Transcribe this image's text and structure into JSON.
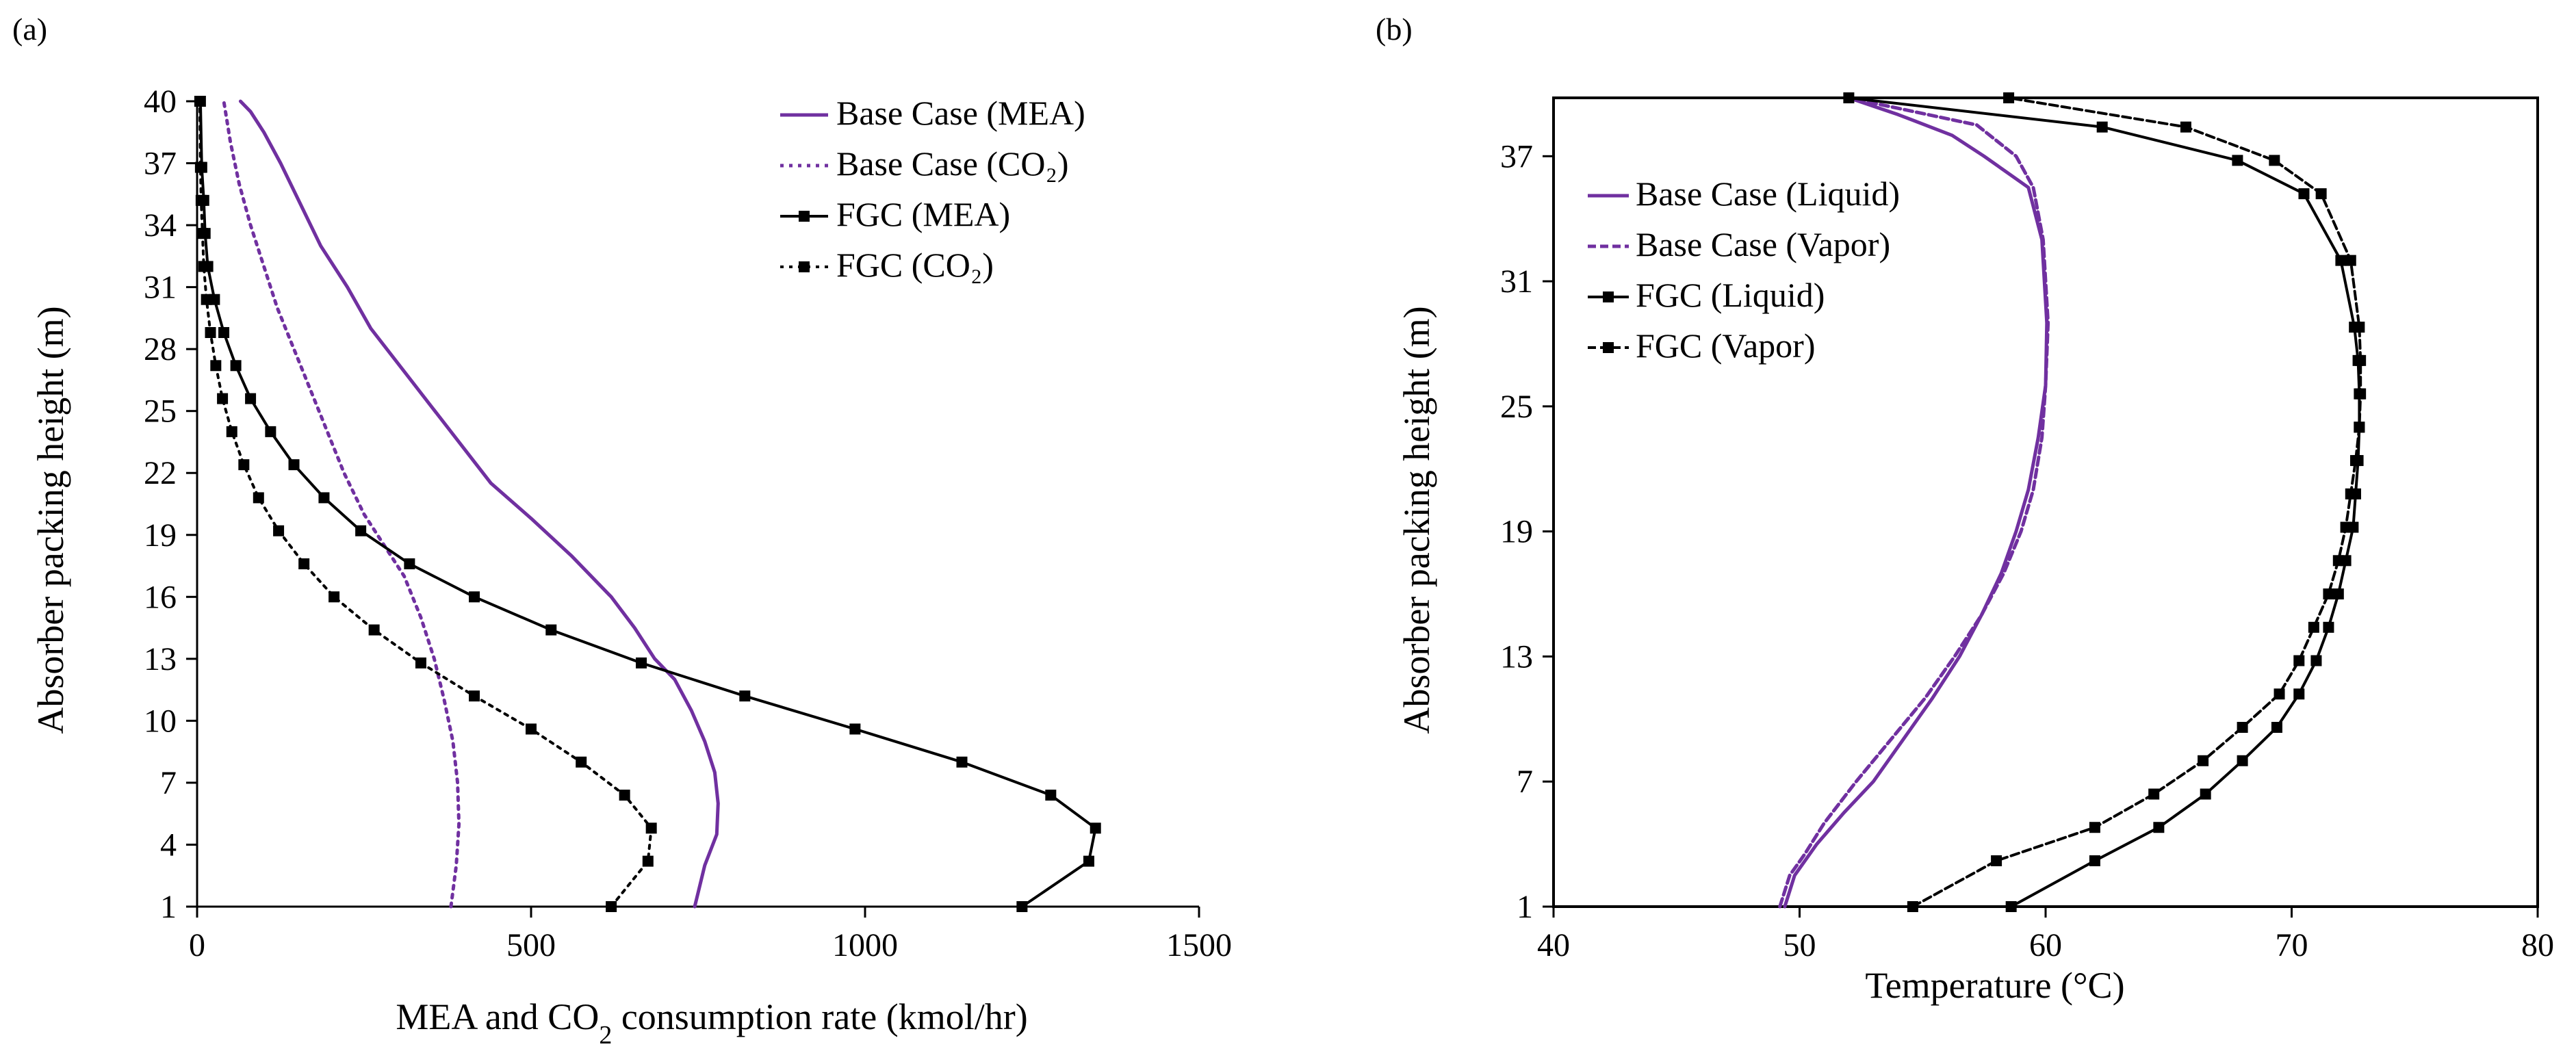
{
  "colors": {
    "purple": "#7030A0",
    "black": "#000000"
  },
  "chart_data": [
    {
      "id": "a",
      "panel_label": "(a)",
      "type": "line",
      "title": "",
      "xlabel_main": "MEA and CO",
      "xlabel_sub": "2",
      "xlabel_tail": " consumption rate (kmol/hr)",
      "ylabel": "Absorber packing height (m)",
      "xlim": [
        0,
        1500
      ],
      "ylim": [
        1,
        40
      ],
      "xticks": [
        0,
        500,
        1000,
        1500
      ],
      "xtick_labels": [
        "0",
        "500",
        "1000",
        "1500"
      ],
      "yticks": [
        1,
        4,
        7,
        10,
        13,
        16,
        19,
        22,
        25,
        28,
        31,
        34,
        37,
        40
      ],
      "ytick_labels": [
        "1",
        "4",
        "7",
        "10",
        "13",
        "16",
        "19",
        "22",
        "25",
        "28",
        "31",
        "34",
        "37",
        "40"
      ],
      "legend_position": "top-right",
      "series": [
        {
          "name": "Base Case (MEA)",
          "color": "#7030A0",
          "style": "solid",
          "marker": false,
          "x": [
            745,
            760,
            778,
            780,
            775,
            760,
            740,
            715,
            685,
            655,
            620,
            560,
            500,
            440,
            380,
            320,
            260,
            225,
            185,
            155,
            125,
            100,
            80,
            65
          ],
          "y": [
            1,
            3,
            4.5,
            6,
            7.5,
            9,
            10.5,
            12,
            13,
            14.5,
            16,
            18,
            19.8,
            21.5,
            24,
            26.5,
            29,
            31,
            33,
            35,
            37,
            38.5,
            39.5,
            40
          ]
        },
        {
          "name": "Base Case (CO₂)",
          "color": "#7030A0",
          "style": "dotted",
          "marker": false,
          "x": [
            380,
            388,
            392,
            390,
            383,
            370,
            355,
            335,
            310,
            280,
            250,
            220,
            195,
            170,
            145,
            120,
            100,
            80,
            63,
            50,
            40
          ],
          "y": [
            1,
            3,
            5,
            7,
            9,
            11,
            13,
            15,
            17,
            18.5,
            20,
            22,
            24,
            26,
            28,
            30,
            32,
            34,
            36,
            38,
            40
          ]
        },
        {
          "name": "FGC (MEA)",
          "color": "#000000",
          "style": "solid",
          "marker": true,
          "x": [
            1235,
            1335,
            1345,
            1278,
            1145,
            985,
            820,
            665,
            530,
            415,
            318,
            245,
            190,
            145,
            110,
            80,
            58,
            40,
            26,
            16,
            12,
            10,
            7,
            5
          ],
          "y": [
            1,
            3.2,
            4.8,
            6.4,
            8,
            9.6,
            11.2,
            12.8,
            14.4,
            16,
            17.6,
            19.2,
            20.8,
            22.4,
            24,
            25.6,
            27.2,
            28.8,
            30.4,
            32,
            33.6,
            35.2,
            36.8,
            40
          ]
        },
        {
          "name": "FGC (CO₂)",
          "color": "#000000",
          "style": "dotted",
          "marker": true,
          "x": [
            620,
            675,
            680,
            640,
            575,
            500,
            415,
            335,
            265,
            205,
            160,
            122,
            92,
            70,
            52,
            38,
            28,
            20,
            14,
            10,
            8,
            6,
            5,
            4
          ],
          "y": [
            1,
            3.2,
            4.8,
            6.4,
            8,
            9.6,
            11.2,
            12.8,
            14.4,
            16,
            17.6,
            19.2,
            20.8,
            22.4,
            24,
            25.6,
            27.2,
            28.8,
            30.4,
            32,
            33.6,
            35.2,
            36.8,
            40
          ]
        }
      ]
    },
    {
      "id": "b",
      "panel_label": "(b)",
      "type": "line",
      "title": "",
      "xlabel": "Temperature (°C)",
      "ylabel": "Absorber packing height (m)",
      "xlim": [
        40,
        80
      ],
      "ylim": [
        1,
        39.8
      ],
      "xticks": [
        40,
        50,
        60,
        70,
        80
      ],
      "xtick_labels": [
        "40",
        "50",
        "60",
        "70",
        "80"
      ],
      "yticks": [
        1,
        7,
        13,
        19,
        25,
        31,
        37
      ],
      "ytick_labels": [
        "1",
        "7",
        "13",
        "19",
        "25",
        "31",
        "37"
      ],
      "legend_position": "top-left",
      "series": [
        {
          "name": "Base Case (Liquid)",
          "color": "#7030A0",
          "style": "solid",
          "marker": false,
          "x": [
            49.4,
            49.8,
            50.7,
            51.8,
            53.0,
            54.2,
            55.4,
            56.5,
            57.4,
            58.2,
            58.8,
            59.3,
            59.7,
            60.0,
            60.05,
            59.85,
            59.3,
            57.5,
            56.2,
            54.0,
            52.0
          ],
          "y": [
            1,
            2.5,
            4,
            5.5,
            7,
            9,
            11,
            13,
            15,
            17,
            19,
            21,
            23.5,
            26,
            29,
            33,
            35.5,
            37,
            38,
            39,
            39.8
          ]
        },
        {
          "name": "Base Case (Vapor)",
          "color": "#7030A0",
          "style": "dashed",
          "marker": false,
          "x": [
            49.2,
            49.6,
            50.2,
            51.0,
            52.3,
            53.7,
            55.1,
            56.3,
            57.4,
            58.3,
            59.0,
            59.5,
            59.85,
            60.0,
            60.1,
            59.9,
            59.5,
            58.8,
            57.2,
            52.0
          ],
          "y": [
            1,
            2.5,
            3.5,
            5,
            7,
            9,
            11,
            13,
            15,
            17,
            19,
            21,
            23.5,
            26,
            29,
            33,
            35.5,
            37,
            38.5,
            39.8
          ]
        },
        {
          "name": "FGC (Liquid)",
          "color": "#000000",
          "style": "solid",
          "marker": true,
          "x": [
            58.6,
            62.0,
            64.6,
            66.5,
            68.0,
            69.4,
            70.3,
            71.0,
            71.5,
            71.9,
            72.2,
            72.5,
            72.6,
            72.7,
            72.75,
            72.75,
            72.7,
            72.55,
            72.0,
            70.5,
            67.8,
            62.3,
            52.0
          ],
          "y": [
            1,
            3.2,
            4.8,
            6.4,
            8,
            9.6,
            11.2,
            12.8,
            14.4,
            16,
            17.6,
            19.2,
            20.8,
            22.4,
            24,
            25.6,
            27.2,
            28.8,
            32,
            35.2,
            36.8,
            38.4,
            39.8
          ]
        },
        {
          "name": "FGC (Vapor)",
          "color": "#000000",
          "style": "dashed",
          "marker": true,
          "x": [
            54.6,
            58.0,
            62.0,
            64.4,
            66.4,
            68.0,
            69.5,
            70.3,
            70.9,
            71.5,
            71.9,
            72.2,
            72.4,
            72.6,
            72.75,
            72.8,
            72.8,
            72.75,
            72.4,
            71.2,
            69.3,
            65.7,
            58.5
          ],
          "y": [
            1,
            3.2,
            4.8,
            6.4,
            8,
            9.6,
            11.2,
            12.8,
            14.4,
            16,
            17.6,
            19.2,
            20.8,
            22.4,
            24,
            25.6,
            27.2,
            28.8,
            32,
            35.2,
            36.8,
            38.4,
            39.8
          ]
        }
      ]
    }
  ]
}
